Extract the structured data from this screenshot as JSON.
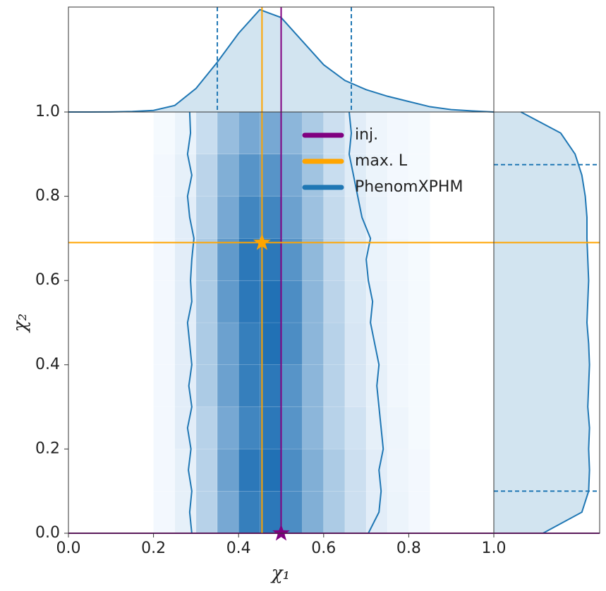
{
  "chart_data": {
    "type": "corner",
    "xlabel": "χ₁",
    "ylabel": "χ₂",
    "xlim": [
      0,
      1
    ],
    "ylim": [
      0,
      1
    ],
    "xticks": [
      {
        "value": 0,
        "label": "0.0"
      },
      0.2,
      0.4,
      0.6,
      0.8,
      {
        "value": 1,
        "label": "1.0"
      }
    ],
    "yticks": [
      {
        "value": 0,
        "label": "0.0"
      },
      0.2,
      0.4,
      0.6,
      0.8,
      {
        "value": 1,
        "label": "1.0"
      }
    ],
    "hist2d": {
      "x_edges": [
        0.2,
        0.25,
        0.3,
        0.35,
        0.4,
        0.45,
        0.5,
        0.55,
        0.6,
        0.65,
        0.7,
        0.75,
        0.8,
        0.85
      ],
      "y_edges": [
        0,
        0.1,
        0.2,
        0.3,
        0.4,
        0.5,
        0.6,
        0.7,
        0.8,
        0.9,
        1.0
      ],
      "counts": [
        [
          0.02,
          0.08,
          0.3,
          0.6,
          0.9,
          0.95,
          0.8,
          0.55,
          0.35,
          0.2,
          0.1,
          0.05,
          0.02
        ],
        [
          0.02,
          0.08,
          0.3,
          0.65,
          0.95,
          1.0,
          0.8,
          0.55,
          0.35,
          0.2,
          0.1,
          0.04,
          0.02
        ],
        [
          0.02,
          0.1,
          0.3,
          0.6,
          0.85,
          0.95,
          0.75,
          0.5,
          0.3,
          0.18,
          0.08,
          0.04,
          0.01
        ],
        [
          0.02,
          0.1,
          0.35,
          0.65,
          0.9,
          0.95,
          0.75,
          0.5,
          0.3,
          0.15,
          0.08,
          0.03,
          0.01
        ],
        [
          0.02,
          0.1,
          0.35,
          0.65,
          0.9,
          1.0,
          0.8,
          0.5,
          0.3,
          0.15,
          0.07,
          0.03,
          0.01
        ],
        [
          0.02,
          0.1,
          0.35,
          0.7,
          0.95,
          1.0,
          0.8,
          0.5,
          0.28,
          0.14,
          0.07,
          0.03,
          0.01
        ],
        [
          0.02,
          0.1,
          0.35,
          0.7,
          0.95,
          0.95,
          0.75,
          0.48,
          0.26,
          0.13,
          0.06,
          0.03,
          0.01
        ],
        [
          0.02,
          0.1,
          0.3,
          0.6,
          0.85,
          0.85,
          0.65,
          0.42,
          0.24,
          0.12,
          0.06,
          0.02,
          0.01
        ],
        [
          0.02,
          0.08,
          0.28,
          0.55,
          0.75,
          0.75,
          0.6,
          0.4,
          0.22,
          0.11,
          0.05,
          0.02,
          0.01
        ],
        [
          0.01,
          0.06,
          0.22,
          0.45,
          0.6,
          0.6,
          0.5,
          0.35,
          0.2,
          0.1,
          0.04,
          0.02,
          0.01
        ]
      ]
    },
    "contour": {
      "y": [
        0,
        0.05,
        0.1,
        0.15,
        0.2,
        0.25,
        0.3,
        0.35,
        0.4,
        0.45,
        0.5,
        0.55,
        0.6,
        0.65,
        0.7,
        0.75,
        0.8,
        0.85,
        0.9,
        0.95,
        1.0
      ],
      "left": [
        0.29,
        0.285,
        0.29,
        0.282,
        0.288,
        0.28,
        0.29,
        0.283,
        0.29,
        0.285,
        0.28,
        0.29,
        0.287,
        0.29,
        0.295,
        0.285,
        0.28,
        0.29,
        0.28,
        0.287,
        0.285
      ],
      "right": [
        0.705,
        0.73,
        0.735,
        0.73,
        0.74,
        0.735,
        0.73,
        0.725,
        0.73,
        0.72,
        0.71,
        0.715,
        0.705,
        0.7,
        0.71,
        0.69,
        0.68,
        0.67,
        0.66,
        0.665,
        0.66
      ]
    },
    "marginal_x": {
      "x": [
        0,
        0.05,
        0.1,
        0.15,
        0.2,
        0.25,
        0.3,
        0.35,
        0.4,
        0.45,
        0.5,
        0.55,
        0.6,
        0.65,
        0.7,
        0.75,
        0.8,
        0.85,
        0.9,
        0.95,
        1.0
      ],
      "density": [
        0,
        0,
        0.005,
        0.02,
        0.06,
        0.25,
        0.9,
        1.9,
        3.0,
        3.9,
        3.6,
        2.7,
        1.8,
        1.2,
        0.85,
        0.6,
        0.4,
        0.2,
        0.09,
        0.04,
        0
      ],
      "lim": [
        0,
        4.0
      ],
      "interval": [
        0.35,
        0.665
      ]
    },
    "marginal_y": {
      "y": [
        0,
        0.05,
        0.1,
        0.15,
        0.2,
        0.25,
        0.3,
        0.35,
        0.4,
        0.45,
        0.5,
        0.55,
        0.6,
        0.65,
        0.7,
        0.75,
        0.8,
        0.85,
        0.9,
        0.95,
        1.0
      ],
      "density": [
        0.58,
        1.04,
        1.12,
        1.13,
        1.12,
        1.13,
        1.11,
        1.12,
        1.13,
        1.12,
        1.1,
        1.11,
        1.12,
        1.11,
        1.1,
        1.1,
        1.08,
        1.04,
        0.96,
        0.79,
        0.32
      ],
      "lim": [
        0,
        1.25
      ],
      "interval": [
        0.1,
        0.875
      ]
    },
    "series": [
      {
        "name": "inj.",
        "color": "#800080",
        "x": 0.5,
        "y": 0.0
      },
      {
        "name": "max. L",
        "color": "#ffa500",
        "x": 0.455,
        "y": 0.69
      },
      {
        "name": "PhenomXPHM",
        "color": "#1f77b4"
      }
    ]
  }
}
